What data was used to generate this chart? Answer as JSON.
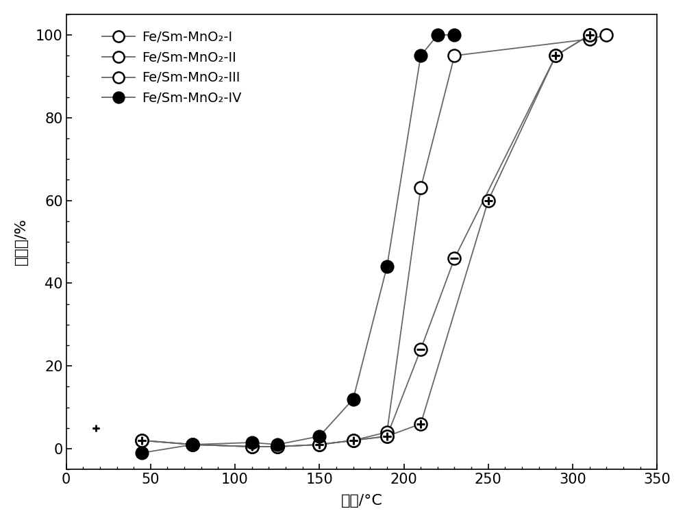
{
  "series": [
    {
      "label": "Fe/Sm-MnO₂-I",
      "marker": "open_circle",
      "x": [
        45,
        75,
        110,
        125,
        150,
        170,
        190,
        210,
        230,
        310,
        320
      ],
      "y": [
        2,
        1,
        0.5,
        0.5,
        1,
        2,
        4,
        63,
        95,
        99,
        100
      ]
    },
    {
      "label": "Fe/Sm-MnO₂-II",
      "marker": "circle_minus",
      "x": [
        45,
        75,
        110,
        125,
        150,
        170,
        190,
        210,
        230,
        290,
        310
      ],
      "y": [
        2,
        1,
        0.5,
        0.5,
        1,
        2,
        3,
        24,
        46,
        95,
        100
      ]
    },
    {
      "label": "Fe/Sm-MnO₂-III",
      "marker": "circle_plus",
      "x": [
        45,
        75,
        110,
        125,
        150,
        170,
        190,
        210,
        250,
        290,
        310
      ],
      "y": [
        2,
        1,
        0.5,
        0.5,
        1,
        2,
        3,
        6,
        60,
        95,
        100
      ]
    },
    {
      "label": "Fe/Sm-MnO₂-IV",
      "marker": "filled_circle",
      "x": [
        45,
        75,
        110,
        125,
        150,
        170,
        190,
        210,
        220,
        230
      ],
      "y": [
        -1,
        1,
        1.5,
        1,
        3,
        12,
        44,
        95,
        100,
        100
      ]
    }
  ],
  "xlabel": "温度/°C",
  "ylabel_line1": "转化",
  "ylabel_line2": "率",
  "ylabel_line3": "/%",
  "ylabel_full": "转化率/%",
  "xlim": [
    0,
    350
  ],
  "ylim": [
    -5,
    105
  ],
  "xticks": [
    0,
    50,
    100,
    150,
    200,
    250,
    300,
    350
  ],
  "yticks": [
    0,
    20,
    40,
    60,
    80,
    100
  ],
  "line_color": "#666666",
  "background_color": "#ffffff",
  "marker_size": 13,
  "line_width": 1.3,
  "font_size_tick": 15,
  "font_size_label": 16,
  "font_size_legend": 14
}
